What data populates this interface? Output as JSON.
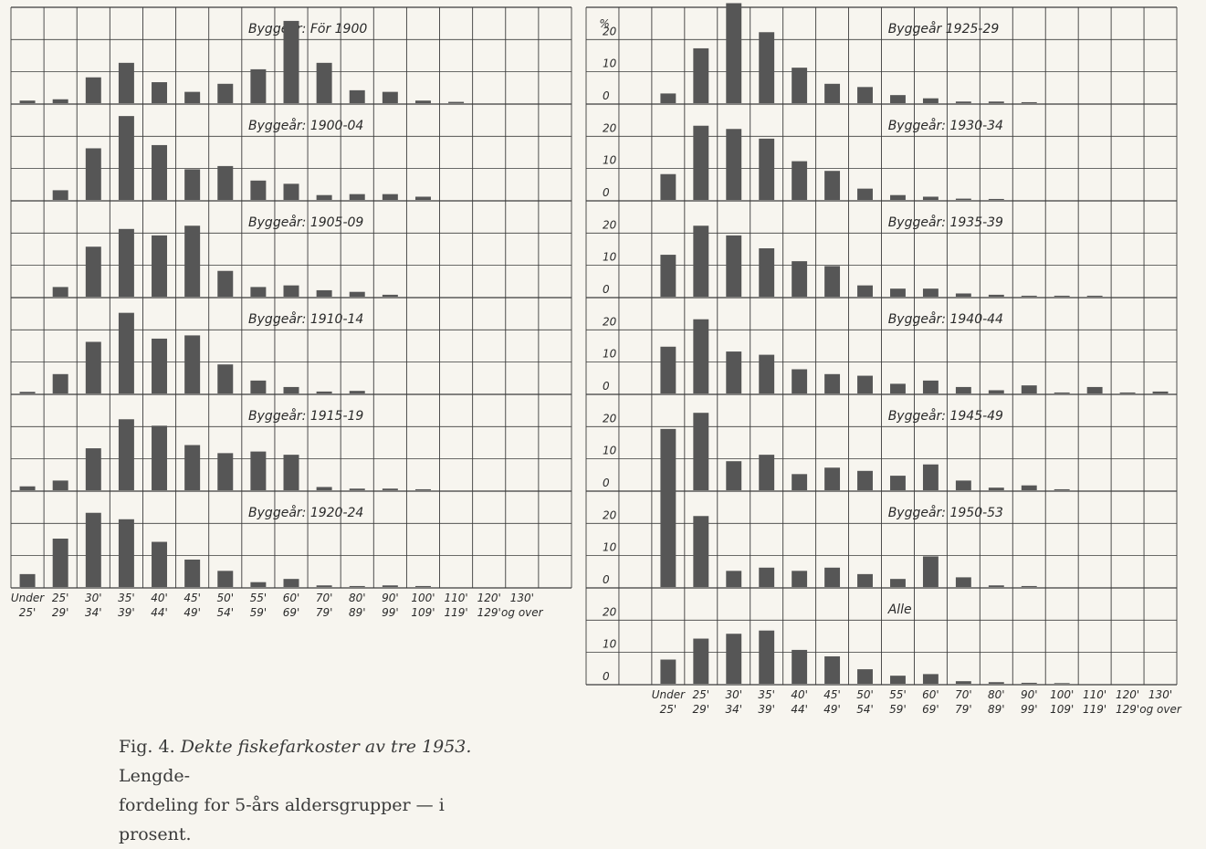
{
  "chart_data": {
    "type": "bar",
    "y_unit_label": "%",
    "y_ticks": [
      "0",
      "10",
      "20"
    ],
    "ylim": [
      0,
      30
    ],
    "x_tick_labels": [
      [
        "Under",
        "25'"
      ],
      [
        "25'",
        "29'"
      ],
      [
        "30'",
        "34'"
      ],
      [
        "35'",
        "39'"
      ],
      [
        "40'",
        "44'"
      ],
      [
        "45'",
        "49'"
      ],
      [
        "50'",
        "54'"
      ],
      [
        "55'",
        "59'"
      ],
      [
        "60'",
        "69'"
      ],
      [
        "70'",
        "79'"
      ],
      [
        "80'",
        "89'"
      ],
      [
        "90'",
        "99'"
      ],
      [
        "100'",
        "109'"
      ],
      [
        "110'",
        "119'"
      ],
      [
        "120'",
        "129'"
      ],
      [
        "130'",
        "og over"
      ]
    ],
    "panels": [
      {
        "title": "Byggeår: För 1900",
        "values": [
          0.8,
          1.2,
          8,
          12.5,
          6.5,
          3.5,
          6,
          10.5,
          25.5,
          12.5,
          4,
          3.5,
          0.8,
          0.4,
          0,
          0
        ]
      },
      {
        "title": "Byggeår: 1900-04",
        "values": [
          0,
          3,
          16,
          26,
          17,
          9.5,
          10.5,
          6,
          5,
          1.5,
          1.8,
          1.8,
          1,
          0,
          0,
          0
        ]
      },
      {
        "title": "Byggeår: 1905-09",
        "values": [
          0,
          3,
          15.5,
          21,
          19,
          22,
          8,
          3,
          3.5,
          2,
          1.5,
          0.6,
          0,
          0,
          0,
          0
        ]
      },
      {
        "title": "Byggeår: 1910-14",
        "values": [
          0.5,
          6,
          16,
          25,
          17,
          18,
          9,
          4,
          2,
          0.6,
          0.8,
          0,
          0,
          0,
          0,
          0
        ]
      },
      {
        "title": "Byggeår: 1915-19",
        "values": [
          1.2,
          3,
          13,
          22,
          20,
          14,
          11.5,
          12,
          11,
          1,
          0.5,
          0.5,
          0.3,
          0,
          0,
          0
        ]
      },
      {
        "title": "Byggeår: 1920-24",
        "values": [
          4,
          15,
          23,
          21,
          14,
          8.5,
          5,
          1.5,
          2.5,
          0.5,
          0.3,
          0.5,
          0.3,
          0,
          0,
          0
        ]
      },
      {
        "title": "Byggeår 1925-29",
        "values": [
          3,
          17,
          31,
          22,
          11,
          6,
          5,
          2.5,
          1.5,
          0.5,
          0.5,
          0.3,
          0,
          0,
          0,
          0
        ]
      },
      {
        "title": "Byggeår: 1930-34",
        "values": [
          8,
          23,
          22,
          19,
          12,
          9,
          3.5,
          1.5,
          1,
          0.4,
          0.3,
          0,
          0,
          0,
          0,
          0
        ]
      },
      {
        "title": "Byggeår: 1935-39",
        "values": [
          13,
          22,
          19,
          15,
          11,
          9.5,
          3.5,
          2.5,
          2.5,
          1,
          0.6,
          0.3,
          0.3,
          0.3,
          0,
          0
        ]
      },
      {
        "title": "Byggeår: 1940-44",
        "values": [
          14.5,
          23,
          13,
          12,
          7.5,
          6,
          5.5,
          3,
          4,
          2,
          1,
          2.5,
          0.3,
          2,
          0.3,
          0.6
        ]
      },
      {
        "title": "Byggeår: 1945-49",
        "values": [
          19,
          24,
          9,
          11,
          5,
          7,
          6,
          4.5,
          8,
          3,
          0.8,
          1.5,
          0.3,
          0,
          0,
          0
        ]
      },
      {
        "title": "Byggeår: 1950-53",
        "values": [
          30,
          22,
          5,
          6,
          5,
          6,
          4,
          2.5,
          9.5,
          3,
          0.5,
          0.3,
          0,
          0,
          0,
          0
        ]
      },
      {
        "title": "Alle",
        "values": [
          7.5,
          14,
          15.5,
          16.5,
          10.5,
          8.5,
          4.5,
          2.5,
          3,
          0.8,
          0.5,
          0.3,
          0.2,
          0,
          0,
          0
        ]
      }
    ]
  },
  "caption": {
    "fig": "Fig. 4.",
    "italic": "Dekte fiskefarkoster av tre 1953.",
    "line1_rest": "Lengde-",
    "line2": "fordeling for 5-års aldersgrupper — i prosent."
  }
}
